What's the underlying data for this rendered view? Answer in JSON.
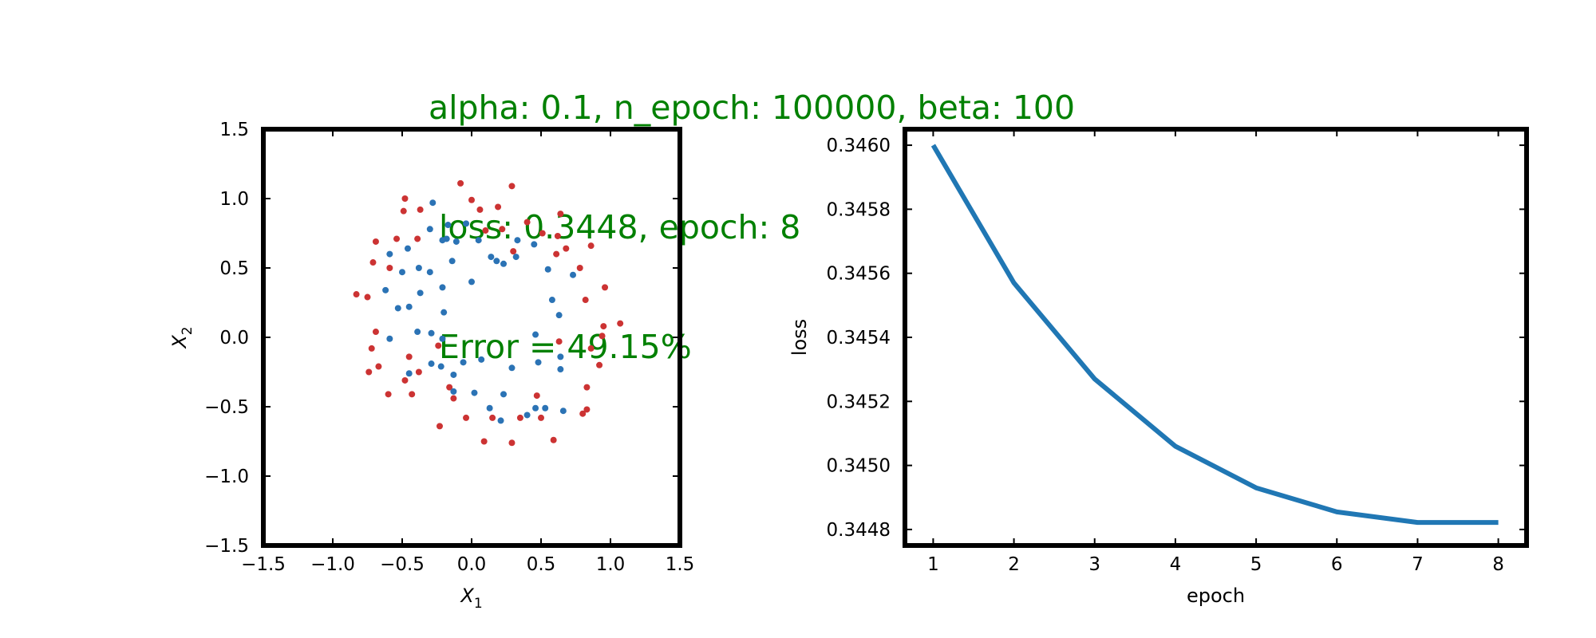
{
  "title_lines": [
    "alpha: 0.1, n_epoch: 100000, beta: 100",
    " loss: 0.3448, epoch: 8",
    " Error = 49.15%"
  ],
  "colors": {
    "title": "#008000",
    "class_a": "#cc3333",
    "class_b": "#2b73b5",
    "loss_line": "#2077b4"
  },
  "chart_data": [
    {
      "type": "scatter",
      "title": "",
      "xlabel": "X_1",
      "ylabel": "X_2",
      "xlim": [
        -1.5,
        1.5
      ],
      "ylim": [
        -1.5,
        1.5
      ],
      "xticks": [
        "−1.5",
        "−1.0",
        "−0.5",
        "0.0",
        "0.5",
        "1.0",
        "1.5"
      ],
      "yticks": [
        "−1.5",
        "−1.0",
        "−0.5",
        "0.0",
        "0.5",
        "1.0",
        "1.5"
      ],
      "grid": false,
      "series": [
        {
          "color": "#cc3333",
          "points": [
            [
              -0.08,
              1.11
            ],
            [
              0.29,
              1.09
            ],
            [
              -0.48,
              1.0
            ],
            [
              0.0,
              0.99
            ],
            [
              -0.49,
              0.91
            ],
            [
              -0.37,
              0.92
            ],
            [
              0.06,
              0.92
            ],
            [
              0.19,
              0.94
            ],
            [
              0.64,
              0.89
            ],
            [
              0.4,
              0.83
            ],
            [
              -0.69,
              0.69
            ],
            [
              -0.54,
              0.71
            ],
            [
              -0.39,
              0.71
            ],
            [
              0.1,
              0.77
            ],
            [
              0.22,
              0.78
            ],
            [
              0.51,
              0.75
            ],
            [
              0.62,
              0.73
            ],
            [
              0.86,
              0.66
            ],
            [
              0.68,
              0.64
            ],
            [
              0.61,
              0.6
            ],
            [
              -0.71,
              0.54
            ],
            [
              -0.59,
              0.5
            ],
            [
              0.78,
              0.5
            ],
            [
              0.3,
              0.62
            ],
            [
              0.96,
              0.36
            ],
            [
              -0.83,
              0.31
            ],
            [
              -0.75,
              0.29
            ],
            [
              0.82,
              0.27
            ],
            [
              1.07,
              0.1
            ],
            [
              0.95,
              0.08
            ],
            [
              -0.69,
              0.04
            ],
            [
              0.94,
              0.01
            ],
            [
              0.63,
              -0.03
            ],
            [
              -0.72,
              -0.08
            ],
            [
              0.86,
              -0.08
            ],
            [
              -0.24,
              -0.06
            ],
            [
              -0.67,
              -0.21
            ],
            [
              -0.45,
              -0.14
            ],
            [
              0.92,
              -0.2
            ],
            [
              0.83,
              -0.36
            ],
            [
              -0.74,
              -0.25
            ],
            [
              -0.38,
              -0.25
            ],
            [
              -0.48,
              -0.31
            ],
            [
              -0.6,
              -0.41
            ],
            [
              -0.43,
              -0.41
            ],
            [
              -0.16,
              -0.36
            ],
            [
              -0.13,
              -0.44
            ],
            [
              0.47,
              -0.42
            ],
            [
              0.8,
              -0.55
            ],
            [
              0.83,
              -0.52
            ],
            [
              -0.04,
              -0.58
            ],
            [
              0.15,
              -0.58
            ],
            [
              0.35,
              -0.58
            ],
            [
              0.5,
              -0.58
            ],
            [
              -0.23,
              -0.64
            ],
            [
              0.09,
              -0.75
            ],
            [
              0.29,
              -0.76
            ],
            [
              0.59,
              -0.74
            ]
          ]
        },
        {
          "color": "#2b73b5",
          "points": [
            [
              -0.28,
              0.97
            ],
            [
              -0.04,
              0.82
            ],
            [
              -0.17,
              0.81
            ],
            [
              -0.3,
              0.78
            ],
            [
              -0.18,
              0.71
            ],
            [
              -0.21,
              0.7
            ],
            [
              -0.11,
              0.69
            ],
            [
              0.05,
              0.7
            ],
            [
              0.33,
              0.7
            ],
            [
              0.45,
              0.67
            ],
            [
              -0.46,
              0.64
            ],
            [
              -0.59,
              0.6
            ],
            [
              0.14,
              0.58
            ],
            [
              0.18,
              0.55
            ],
            [
              0.23,
              0.53
            ],
            [
              0.32,
              0.58
            ],
            [
              -0.14,
              0.55
            ],
            [
              -0.38,
              0.5
            ],
            [
              -0.5,
              0.47
            ],
            [
              -0.3,
              0.47
            ],
            [
              0.55,
              0.49
            ],
            [
              0.73,
              0.45
            ],
            [
              0.0,
              0.4
            ],
            [
              -0.21,
              0.36
            ],
            [
              -0.62,
              0.34
            ],
            [
              -0.37,
              0.32
            ],
            [
              0.58,
              0.27
            ],
            [
              -0.53,
              0.21
            ],
            [
              -0.45,
              0.22
            ],
            [
              -0.2,
              0.18
            ],
            [
              0.63,
              0.16
            ],
            [
              -0.39,
              0.04
            ],
            [
              -0.29,
              0.03
            ],
            [
              0.46,
              0.02
            ],
            [
              -0.59,
              -0.01
            ],
            [
              -0.21,
              -0.01
            ],
            [
              0.64,
              -0.14
            ],
            [
              0.07,
              -0.16
            ],
            [
              -0.06,
              -0.18
            ],
            [
              -0.29,
              -0.19
            ],
            [
              -0.22,
              -0.21
            ],
            [
              0.48,
              -0.18
            ],
            [
              0.64,
              -0.23
            ],
            [
              0.29,
              -0.22
            ],
            [
              -0.45,
              -0.26
            ],
            [
              -0.13,
              -0.27
            ],
            [
              -0.13,
              -0.39
            ],
            [
              0.02,
              -0.4
            ],
            [
              0.23,
              -0.41
            ],
            [
              0.13,
              -0.51
            ],
            [
              0.46,
              -0.51
            ],
            [
              0.53,
              -0.51
            ],
            [
              0.66,
              -0.53
            ],
            [
              0.21,
              -0.6
            ],
            [
              0.4,
              -0.56
            ]
          ]
        }
      ]
    },
    {
      "type": "line",
      "title": "",
      "xlabel": "epoch",
      "ylabel": "loss",
      "xlim": [
        0.65,
        8.35
      ],
      "ylim": [
        0.34475,
        0.34605
      ],
      "xticks": [
        "1",
        "2",
        "3",
        "4",
        "5",
        "6",
        "7",
        "8"
      ],
      "yticks": [
        "0.3448",
        "0.3450",
        "0.3452",
        "0.3454",
        "0.3456",
        "0.3458",
        "0.3460"
      ],
      "grid": false,
      "series": [
        {
          "color": "#2077b4",
          "x": [
            1,
            2,
            3,
            4,
            5,
            6,
            7,
            8
          ],
          "y": [
            0.346,
            0.34557,
            0.34527,
            0.34506,
            0.34493,
            0.344855,
            0.344822,
            0.344822
          ]
        }
      ]
    }
  ]
}
